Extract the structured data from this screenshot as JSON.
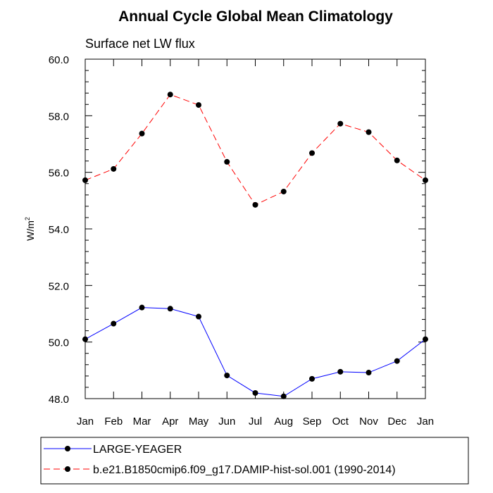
{
  "chart_data": {
    "type": "line",
    "title": "Annual Cycle Global Mean Climatology",
    "subtitle": "Surface net LW flux",
    "ylabel": "W/m",
    "ylabel_superscript": "2",
    "xlabel": "",
    "categories": [
      "Jan",
      "Feb",
      "Mar",
      "Apr",
      "May",
      "Jun",
      "Jul",
      "Aug",
      "Sep",
      "Oct",
      "Nov",
      "Dec",
      "Jan"
    ],
    "ylim": [
      48.0,
      60.0
    ],
    "yticks": [
      "48.0",
      "50.0",
      "52.0",
      "54.0",
      "56.0",
      "58.0",
      "60.0"
    ],
    "grid": false,
    "legend_position": "bottom",
    "series": [
      {
        "name": "LARGE-YEAGER",
        "color": "#0000ff",
        "dash": "solid",
        "values": [
          50.1,
          50.65,
          51.22,
          51.18,
          50.9,
          48.82,
          48.2,
          48.08,
          48.7,
          48.95,
          48.92,
          49.33,
          50.1
        ]
      },
      {
        "name": "b.e21.B1850cmip6.f09_g17.DAMIP-hist-sol.001 (1990-2014)",
        "color": "#ff0000",
        "dash": "dashed",
        "values": [
          55.72,
          56.12,
          57.37,
          58.75,
          58.38,
          56.37,
          54.85,
          55.32,
          56.68,
          57.72,
          57.42,
          56.42,
          55.72
        ]
      }
    ]
  }
}
